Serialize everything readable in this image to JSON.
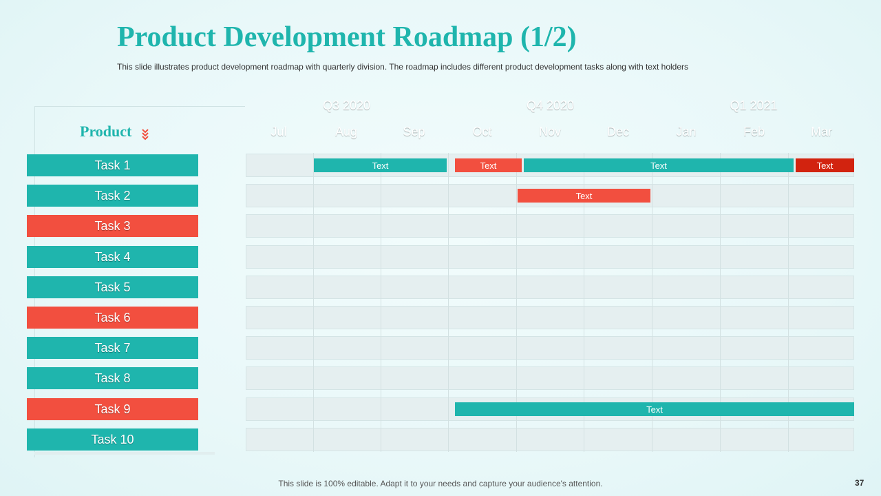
{
  "title": "Product Development Roadmap (1/2)",
  "subtitle": "This slide illustrates product development  roadmap with quarterly division. The roadmap includes different  product development  tasks along with text holders",
  "product_label": "Product",
  "quarters": [
    {
      "label": "Q3 2020",
      "color": "#1fb5ad"
    },
    {
      "label": "Q4 2020",
      "color": "#1fb5ad"
    },
    {
      "label": "Q1 2021",
      "color": "#f24f3f"
    }
  ],
  "months": [
    "Jul",
    "Aug",
    "Sep",
    "Oct",
    "Nov",
    "Dec",
    "Jan",
    "Feb",
    "Mar"
  ],
  "tasks": [
    {
      "label": "Task 1",
      "color": "teal"
    },
    {
      "label": "Task 2",
      "color": "teal"
    },
    {
      "label": "Task 3",
      "color": "red"
    },
    {
      "label": "Task 4",
      "color": "teal"
    },
    {
      "label": "Task 5",
      "color": "teal"
    },
    {
      "label": "Task 6",
      "color": "red"
    },
    {
      "label": "Task 7",
      "color": "teal"
    },
    {
      "label": "Task 8",
      "color": "teal"
    },
    {
      "label": "Task 9",
      "color": "red"
    },
    {
      "label": "Task 10",
      "color": "teal"
    }
  ],
  "bars": [
    {
      "task": "Task 1",
      "start_month": "Aug",
      "end_month": "Sep",
      "label": "Text",
      "color": "#1fb5ad"
    },
    {
      "task": "Task 1",
      "start_month": "Oct",
      "end_month": "Oct",
      "label": "Text",
      "color": "#f24f3f"
    },
    {
      "task": "Task 1",
      "start_month": "Nov",
      "end_month": "Feb",
      "label": "Text",
      "color": "#1fb5ad"
    },
    {
      "task": "Task 1",
      "start_month": "Mar",
      "end_month": "Mar",
      "label": "Text",
      "color": "#d2230f"
    },
    {
      "task": "Task 2",
      "start_month": "Nov",
      "end_month": "Dec",
      "label": "Text",
      "color": "#f24f3f"
    },
    {
      "task": "Task 9",
      "start_month": "Oct",
      "end_month": "Mar",
      "label": "Text",
      "color": "#1fb5ad"
    }
  ],
  "footer": "This slide is 100% editable. Adapt it to your needs and capture your audience's attention.",
  "page_number": "37",
  "colors": {
    "teal": "#1fb5ad",
    "red": "#f24f3f",
    "dark_red": "#d2230f"
  }
}
